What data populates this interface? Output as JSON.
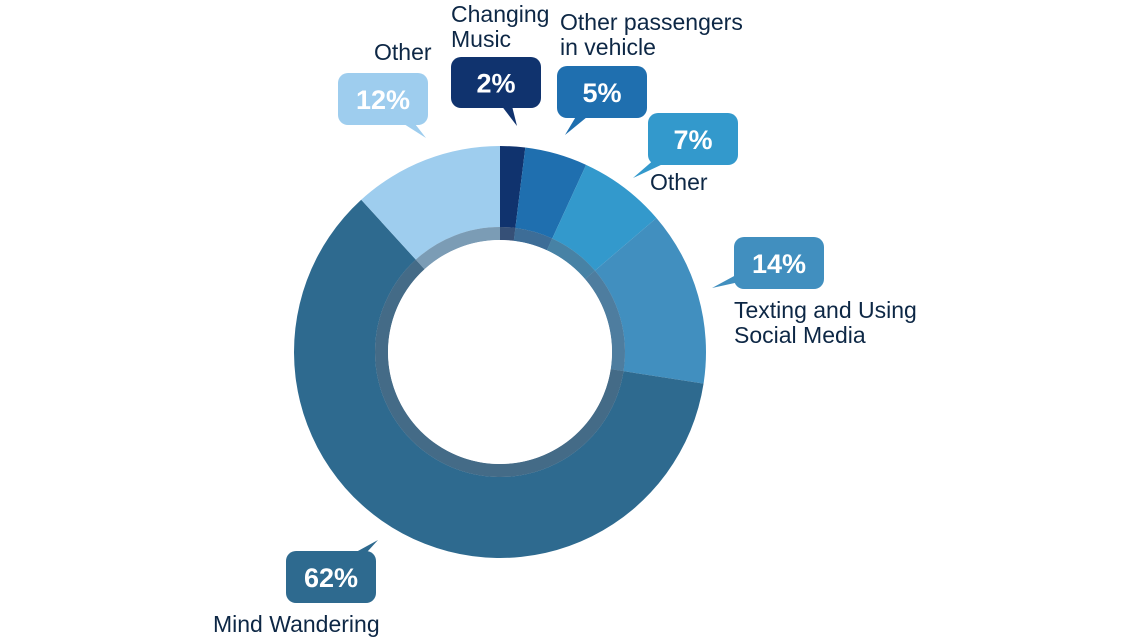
{
  "chart_data": {
    "type": "pie",
    "donut": true,
    "categories": [
      "Changing Music",
      "Other passengers in vehicle",
      "Other",
      "Texting and Using Social Media",
      "Mind Wandering",
      "Other"
    ],
    "values": [
      2,
      5,
      7,
      14,
      62,
      12
    ],
    "value_labels": [
      "2%",
      "5%",
      "7%",
      "14%",
      "62%",
      "12%"
    ],
    "unit": "%",
    "legend": "none",
    "colors": [
      "#10336e",
      "#1f6faf",
      "#3399cc",
      "#418fbf",
      "#2e6a8f",
      "#9ecdee"
    ]
  }
}
